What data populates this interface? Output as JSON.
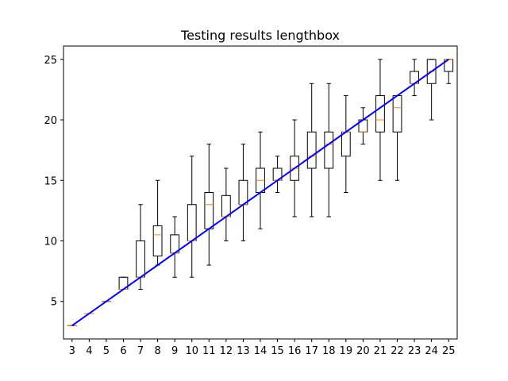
{
  "chart_data": {
    "type": "box",
    "title": "Testing results lengthbox",
    "xlabel": "",
    "ylabel": "",
    "categories": [
      "3",
      "4",
      "5",
      "6",
      "7",
      "8",
      "9",
      "10",
      "11",
      "12",
      "13",
      "14",
      "15",
      "16",
      "17",
      "18",
      "19",
      "20",
      "21",
      "22",
      "23",
      "24",
      "25"
    ],
    "ylim": [
      1.9,
      26.1
    ],
    "yticks": [
      5,
      10,
      15,
      20,
      25
    ],
    "grid": false,
    "boxes": [
      {
        "category": "3",
        "whislo": 3,
        "q1": 3,
        "med": 3,
        "q3": 3,
        "whishi": 3
      },
      {
        "category": "4",
        "whislo": 4,
        "q1": 4,
        "med": 4,
        "q3": 4,
        "whishi": 4
      },
      {
        "category": "5",
        "whislo": 5,
        "q1": 5,
        "med": 5,
        "q3": 5,
        "whishi": 5
      },
      {
        "category": "6",
        "whislo": 6,
        "q1": 6,
        "med": 6,
        "q3": 7,
        "whishi": 7
      },
      {
        "category": "7",
        "whislo": 6,
        "q1": 7,
        "med": 7,
        "q3": 10,
        "whishi": 13
      },
      {
        "category": "8",
        "whislo": 8,
        "q1": 8.75,
        "med": 10.5,
        "q3": 11.25,
        "whishi": 15
      },
      {
        "category": "9",
        "whislo": 7,
        "q1": 9,
        "med": 9,
        "q3": 10.5,
        "whishi": 12
      },
      {
        "category": "10",
        "whislo": 7,
        "q1": 10,
        "med": 10,
        "q3": 13,
        "whishi": 17
      },
      {
        "category": "11",
        "whislo": 8,
        "q1": 11,
        "med": 13,
        "q3": 14,
        "whishi": 18
      },
      {
        "category": "12",
        "whislo": 10,
        "q1": 12,
        "med": 12,
        "q3": 13.75,
        "whishi": 16
      },
      {
        "category": "13",
        "whislo": 10,
        "q1": 13,
        "med": 13,
        "q3": 15,
        "whishi": 18
      },
      {
        "category": "14",
        "whislo": 11,
        "q1": 14,
        "med": 15,
        "q3": 16,
        "whishi": 19
      },
      {
        "category": "15",
        "whislo": 14,
        "q1": 15,
        "med": 15,
        "q3": 16,
        "whishi": 17
      },
      {
        "category": "16",
        "whislo": 12,
        "q1": 15,
        "med": 16,
        "q3": 17,
        "whishi": 20
      },
      {
        "category": "17",
        "whislo": 12,
        "q1": 16,
        "med": 17,
        "q3": 19,
        "whishi": 23
      },
      {
        "category": "18",
        "whislo": 12,
        "q1": 16,
        "med": 18,
        "q3": 19,
        "whishi": 23
      },
      {
        "category": "19",
        "whislo": 14,
        "q1": 17,
        "med": 19,
        "q3": 19,
        "whishi": 22
      },
      {
        "category": "20",
        "whislo": 18,
        "q1": 19,
        "med": 19,
        "q3": 20,
        "whishi": 21
      },
      {
        "category": "21",
        "whislo": 15,
        "q1": 19,
        "med": 20,
        "q3": 22,
        "whishi": 25
      },
      {
        "category": "22",
        "whislo": 15,
        "q1": 19,
        "med": 21,
        "q3": 22,
        "whishi": 22
      },
      {
        "category": "23",
        "whislo": 22,
        "q1": 23,
        "med": 23,
        "q3": 24,
        "whishi": 25
      },
      {
        "category": "24",
        "whislo": 20,
        "q1": 23,
        "med": 24,
        "q3": 25,
        "whishi": 25
      },
      {
        "category": "25",
        "whislo": 23,
        "q1": 24,
        "med": 25,
        "q3": 25,
        "whishi": 25
      }
    ],
    "reference_line": {
      "x": [
        3,
        25
      ],
      "y": [
        3,
        25
      ],
      "color": "#0000ff"
    },
    "colors": {
      "box": "#000000",
      "median": "#ff7f0e",
      "reference": "#0000ff"
    }
  }
}
